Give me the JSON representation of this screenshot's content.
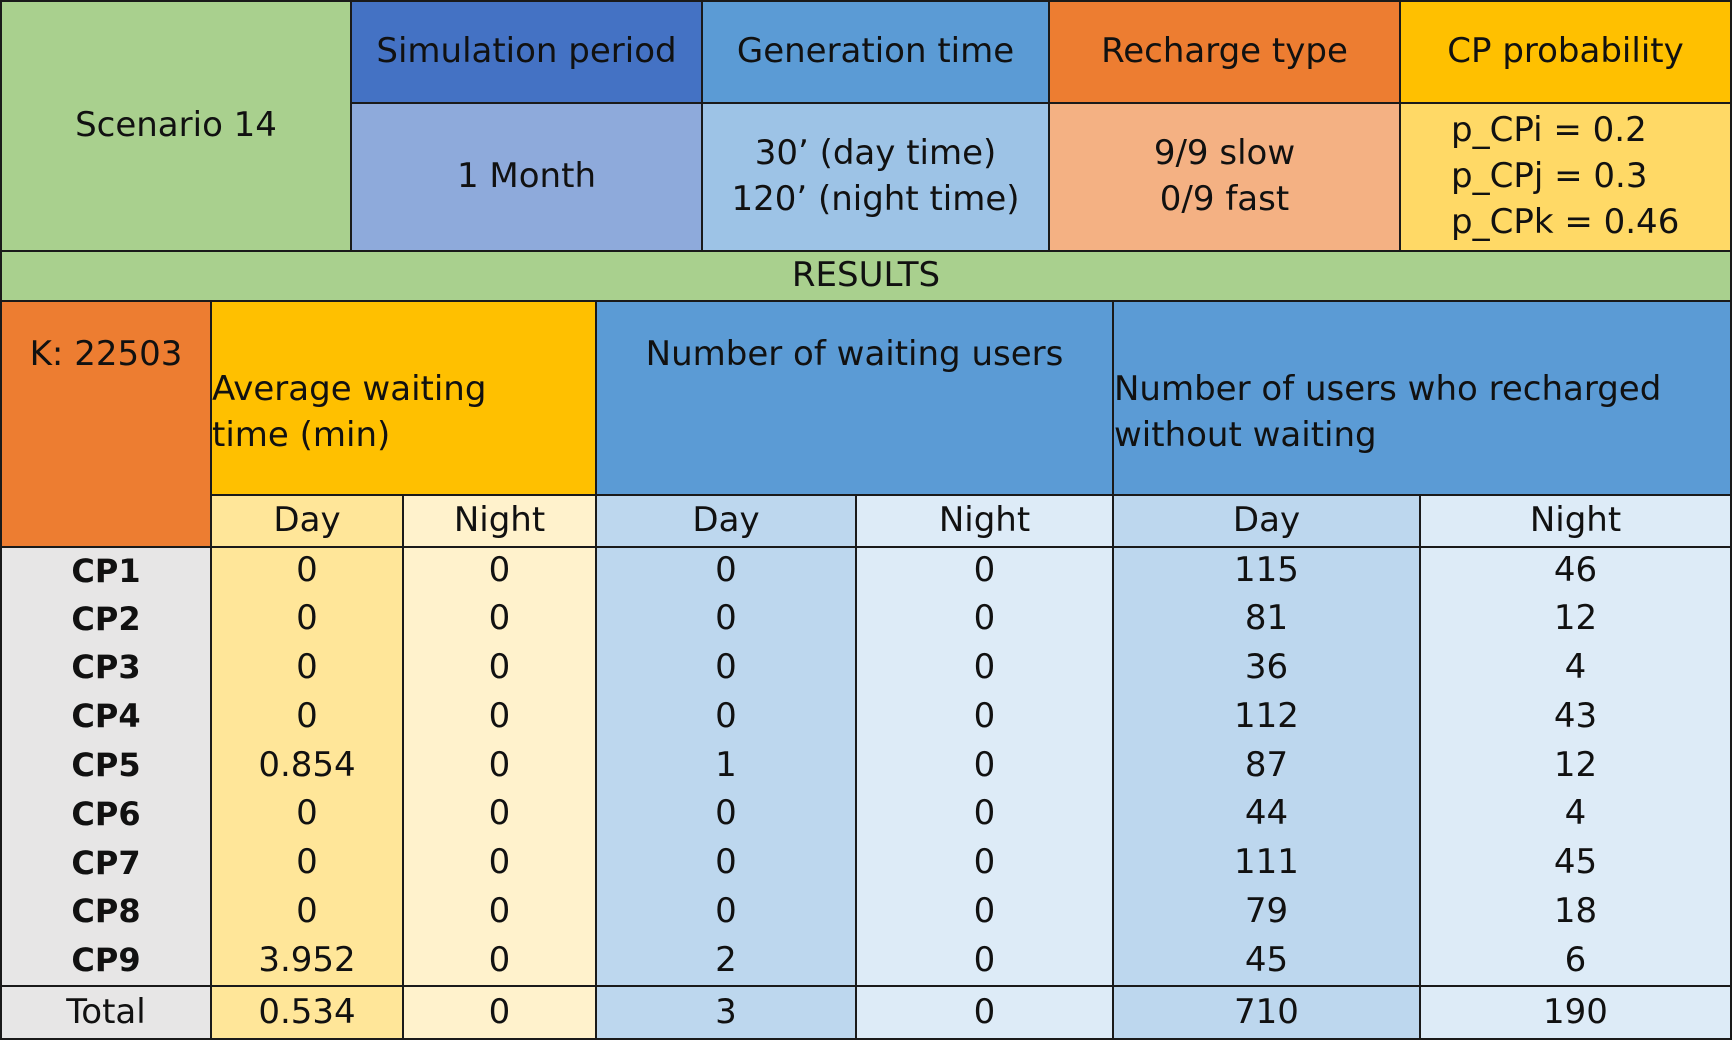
{
  "header": {
    "scenario": "Scenario 14",
    "columns": [
      {
        "title": "Simulation period",
        "lines": [
          "1 Month"
        ]
      },
      {
        "title": "Generation time",
        "lines": [
          "30’ (day time)",
          "120’ (night time)"
        ]
      },
      {
        "title": "Recharge type",
        "lines": [
          "9/9 slow",
          "0/9 fast"
        ]
      },
      {
        "title": "CP probability",
        "lines": [
          "p_CPi = 0.2",
          "p_CPj = 0.3",
          "p_CPk = 0.46"
        ]
      }
    ]
  },
  "results_label": "RESULTS",
  "results_table": {
    "k_label": "K: 22503",
    "groups": [
      {
        "lines": [
          "Average waiting",
          "time (min)"
        ]
      },
      {
        "lines": [
          "Number of waiting users"
        ]
      },
      {
        "lines": [
          "Number of users who recharged",
          "without waiting"
        ]
      }
    ],
    "subheaders": [
      "Day",
      "Night",
      "Day",
      "Night",
      "Day",
      "Night"
    ],
    "rows": [
      {
        "label": "CP1",
        "values": [
          "0",
          "0",
          "0",
          "0",
          "115",
          "46"
        ]
      },
      {
        "label": "CP2",
        "values": [
          "0",
          "0",
          "0",
          "0",
          "81",
          "12"
        ]
      },
      {
        "label": "CP3",
        "values": [
          "0",
          "0",
          "0",
          "0",
          "36",
          "4"
        ]
      },
      {
        "label": "CP4",
        "values": [
          "0",
          "0",
          "0",
          "0",
          "112",
          "43"
        ]
      },
      {
        "label": "CP5",
        "values": [
          "0.854",
          "0",
          "1",
          "0",
          "87",
          "12"
        ]
      },
      {
        "label": "CP6",
        "values": [
          "0",
          "0",
          "0",
          "0",
          "44",
          "4"
        ]
      },
      {
        "label": "CP7",
        "values": [
          "0",
          "0",
          "0",
          "0",
          "111",
          "45"
        ]
      },
      {
        "label": "CP8",
        "values": [
          "0",
          "0",
          "0",
          "0",
          "79",
          "18"
        ]
      },
      {
        "label": "CP9",
        "values": [
          "3.952",
          "0",
          "2",
          "0",
          "45",
          "6"
        ]
      }
    ],
    "total": {
      "label": "Total",
      "values": [
        "0.534",
        "0",
        "3",
        "0",
        "710",
        "190"
      ]
    }
  }
}
